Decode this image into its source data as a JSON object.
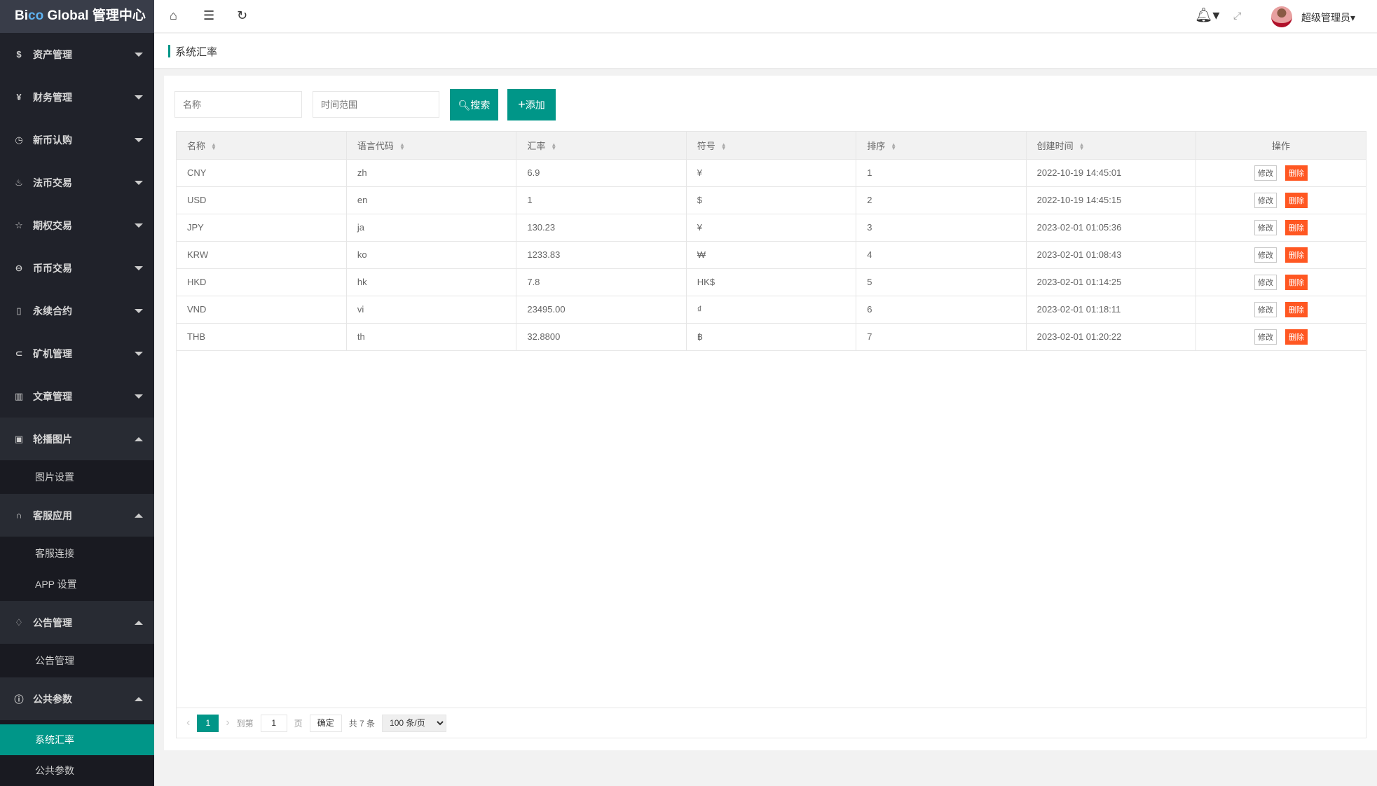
{
  "app": {
    "logo_a": "Bi",
    "logo_b": "co",
    "logo_c": " Global 管理中心"
  },
  "sidebar": {
    "menus": [
      {
        "label": "资产管理",
        "icon": "dollar-circle-icon",
        "glyph": "$"
      },
      {
        "label": "财务管理",
        "icon": "yen-circle-icon",
        "glyph": "¥"
      },
      {
        "label": "新币认购",
        "icon": "clock-icon",
        "glyph": "◷"
      },
      {
        "label": "法币交易",
        "icon": "fire-icon",
        "glyph": "♨"
      },
      {
        "label": "期权交易",
        "icon": "star-icon",
        "glyph": "☆"
      },
      {
        "label": "币币交易",
        "icon": "exchange-icon",
        "glyph": "⊖"
      },
      {
        "label": "永续合约",
        "icon": "file-icon",
        "glyph": "▯"
      },
      {
        "label": "矿机管理",
        "icon": "miner-icon",
        "glyph": "⊂"
      },
      {
        "label": "文章管理",
        "icon": "book-icon",
        "glyph": "▥"
      }
    ],
    "groups": [
      {
        "label": "轮播图片",
        "icon": "image-icon",
        "glyph": "▣",
        "children": [
          "图片设置"
        ]
      },
      {
        "label": "客服应用",
        "icon": "headset-icon",
        "glyph": "∩",
        "children": [
          "客服连接",
          "APP 设置"
        ]
      },
      {
        "label": "公告管理",
        "icon": "bell-icon",
        "glyph": "♢",
        "children": [
          "公告管理"
        ]
      },
      {
        "label": "公共参数",
        "icon": "info-icon",
        "glyph": "ⓘ",
        "children": [
          "系统汇率",
          "公共参数"
        ]
      }
    ],
    "active": "系统汇率"
  },
  "topbar": {
    "user": "超级管理员"
  },
  "breadcrumb": "系统汇率",
  "search": {
    "name_placeholder": "名称",
    "time_placeholder": "时间范围",
    "search_label": "搜索",
    "add_label": "添加"
  },
  "table": {
    "columns": [
      "名称",
      "语言代码",
      "汇率",
      "符号",
      "排序",
      "创建时间",
      "操作"
    ],
    "rows": [
      [
        "CNY",
        "zh",
        "6.9",
        "¥",
        "1",
        "2022-10-19 14:45:01"
      ],
      [
        "USD",
        "en",
        "1",
        "$",
        "2",
        "2022-10-19 14:45:15"
      ],
      [
        "JPY",
        "ja",
        "130.23",
        "¥",
        "3",
        "2023-02-01 01:05:36"
      ],
      [
        "KRW",
        "ko",
        "1233.83",
        "₩",
        "4",
        "2023-02-01 01:08:43"
      ],
      [
        "HKD",
        "hk",
        "7.8",
        "HK$",
        "5",
        "2023-02-01 01:14:25"
      ],
      [
        "VND",
        "vi",
        "23495.00",
        "₫",
        "6",
        "2023-02-01 01:18:11"
      ],
      [
        "THB",
        "th",
        "32.8800",
        "฿",
        "7",
        "2023-02-01 01:20:22"
      ]
    ],
    "edit_label": "修改",
    "delete_label": "删除"
  },
  "pager": {
    "current": "1",
    "goto_label": "到第",
    "goto_value": "1",
    "page_label": "页",
    "confirm_label": "确定",
    "total": "共 7 条",
    "page_size": "100 条/页"
  },
  "colors": {
    "accent": "#009688",
    "danger": "#ff5722",
    "sidebar": "#20222a"
  }
}
